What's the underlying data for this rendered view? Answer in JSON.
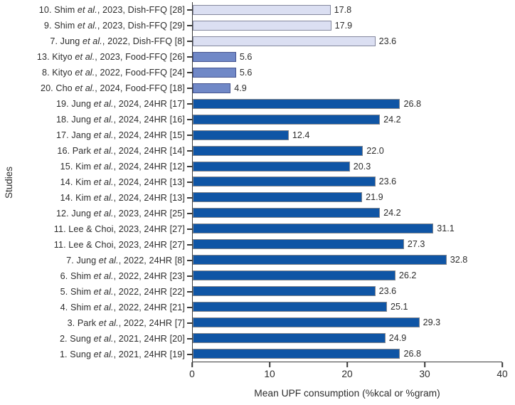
{
  "chart_data": {
    "type": "bar",
    "orientation": "horizontal",
    "title": "",
    "xlabel": "Mean UPF consumption (%kcal or %gram)",
    "ylabel": "Studies",
    "xlim": [
      0,
      40
    ],
    "xticks": [
      0,
      10,
      20,
      30,
      40
    ],
    "grid": false,
    "legend": "none",
    "bar_groups": {
      "dish_ffq": {
        "fill": "#dbdff2",
        "edge": "#84889e"
      },
      "food_ffq": {
        "fill": "#7088c7",
        "edge": "#47558f"
      },
      "hr24": {
        "fill": "#0f55a5",
        "edge": "#80858d"
      }
    },
    "rows": [
      {
        "label": "10. Shim *et al.*, 2023, Dish-FFQ [28]",
        "value": 17.8,
        "group": "dish_ffq"
      },
      {
        "label": "9. Shim *et al.*, 2023, Dish-FFQ [29]",
        "value": 17.9,
        "group": "dish_ffq"
      },
      {
        "label": "7. Jung *et al.*, 2022, Dish-FFQ [8]",
        "value": 23.6,
        "group": "dish_ffq"
      },
      {
        "label": "13. Kityo *et al.*, 2023, Food-FFQ [26]",
        "value": 5.6,
        "group": "food_ffq"
      },
      {
        "label": "8. Kityo *et al.*, 2022, Food-FFQ [24]",
        "value": 5.6,
        "group": "food_ffq"
      },
      {
        "label": "20. Cho *et al.*, 2024, Food-FFQ [18]",
        "value": 4.9,
        "group": "food_ffq"
      },
      {
        "label": "19. Jung *et al.*, 2024, 24HR [17]",
        "value": 26.8,
        "group": "hr24"
      },
      {
        "label": "18. Jung *et al.*, 2024, 24HR [16]",
        "value": 24.2,
        "group": "hr24"
      },
      {
        "label": "17. Jang *et al.*, 2024, 24HR [15]",
        "value": 12.4,
        "group": "hr24"
      },
      {
        "label": "16. Park *et al.*, 2024, 24HR [14]",
        "value": 22.0,
        "group": "hr24"
      },
      {
        "label": "15. Kim *et al.*, 2024, 24HR [12]",
        "value": 20.3,
        "group": "hr24"
      },
      {
        "label": "14. Kim *et al.*, 2024, 24HR [13]",
        "value": 23.6,
        "group": "hr24"
      },
      {
        "label": "14. Kim *et al.*, 2024, 24HR [13]",
        "value": 21.9,
        "group": "hr24"
      },
      {
        "label": "12. Jung *et al.*, 2023, 24HR [25]",
        "value": 24.2,
        "group": "hr24"
      },
      {
        "label": "11. Lee & Choi, 2023, 24HR [27]",
        "value": 31.1,
        "group": "hr24"
      },
      {
        "label": "11. Lee & Choi, 2023, 24HR [27]",
        "value": 27.3,
        "group": "hr24"
      },
      {
        "label": "7. Jung *et al.*, 2022, 24HR [8]",
        "value": 32.8,
        "group": "hr24"
      },
      {
        "label": "6. Shim *et al.*, 2022, 24HR [23]",
        "value": 26.2,
        "group": "hr24"
      },
      {
        "label": "5. Shim *et al.*, 2022, 24HR [22]",
        "value": 23.6,
        "group": "hr24"
      },
      {
        "label": "4. Shim *et al.*, 2022, 24HR [21]",
        "value": 25.1,
        "group": "hr24"
      },
      {
        "label": "3. Park *et al.*, 2022, 24HR [7]",
        "value": 29.3,
        "group": "hr24"
      },
      {
        "label": "2. Sung *et al.*, 2021, 24HR [20]",
        "value": 24.9,
        "group": "hr24"
      },
      {
        "label": "1. Sung *et al.*, 2021, 24HR [19]",
        "value": 26.8,
        "group": "hr24"
      }
    ]
  }
}
